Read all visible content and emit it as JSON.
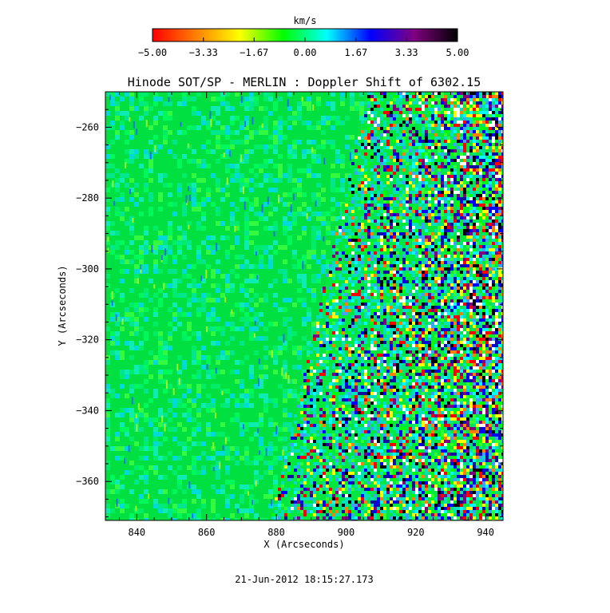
{
  "chart_data": {
    "type": "heatmap",
    "title": "Hinode SOT/SP - MERLIN : Doppler Shift of 6302.15",
    "xlabel": "X (Arcseconds)",
    "ylabel": "Y (Arcseconds)",
    "xlim": [
      831,
      945
    ],
    "ylim": [
      -371,
      -250
    ],
    "x_ticks": [
      840,
      860,
      880,
      900,
      920,
      940
    ],
    "y_ticks": [
      -260,
      -280,
      -300,
      -320,
      -340,
      -360
    ],
    "x_tick_labels": [
      "840",
      "860",
      "880",
      "900",
      "920",
      "940"
    ],
    "y_tick_labels": [
      "−260",
      "−280",
      "−300",
      "−320",
      "−340",
      "−360"
    ],
    "timestamp": "21-Jun-2012 18:15:27.173",
    "limb_boundary": {
      "x_at_ymin": 879,
      "x_at_ymax": 907
    },
    "colorbar": {
      "unit": "km/s",
      "range": [
        -5.0,
        5.0
      ],
      "tick_values": [
        -5.0,
        -3.33,
        -1.67,
        0.0,
        1.67,
        3.33,
        5.0
      ],
      "tick_labels": [
        "−5.00",
        "−3.33",
        "−1.67",
        "0.00",
        "1.67",
        "3.33",
        "5.00"
      ],
      "colors": [
        "#ff0000",
        "#ff8000",
        "#ffff00",
        "#00ff00",
        "#00ffff",
        "#0000ff",
        "#800080",
        "#000000"
      ]
    }
  }
}
